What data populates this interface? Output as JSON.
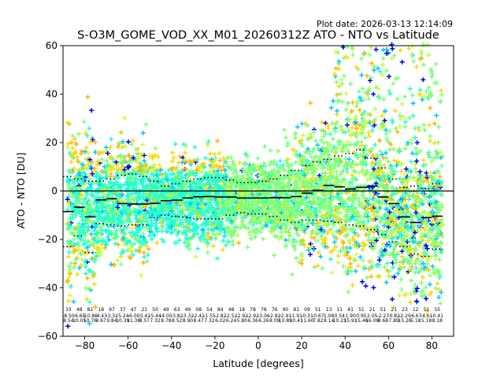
{
  "plot_date": "Plot date: 2026-03-13 12:14:09",
  "chart_data": {
    "type": "scatter",
    "title": "S-O3M_GOME_VOD_XX_M01_20260312Z ATO - NTO vs Latitude",
    "xlabel": "Latitude [degrees]",
    "ylabel": "ATO - NTO [DU]",
    "xlim": [
      -90,
      90
    ],
    "ylim": [
      -60,
      60
    ],
    "x_ticks": [
      -80,
      -60,
      -40,
      -20,
      0,
      20,
      40,
      60,
      80
    ],
    "y_ticks": [
      -60,
      -40,
      -20,
      0,
      20,
      40,
      60
    ],
    "zero_line": 0,
    "colors": [
      "#0000ee",
      "#00c8ff",
      "#22ffd2",
      "#7dff7d",
      "#c8ff3c",
      "#ffd700",
      "#ffb400"
    ],
    "bin_mean": {
      "x": [
        -87.5,
        -82.5,
        -77.5,
        -72.5,
        -67.5,
        -62.5,
        -57.5,
        -52.5,
        -47.5,
        -42.5,
        -37.5,
        -32.5,
        -27.5,
        -22.5,
        -17.5,
        -12.5,
        -7.5,
        -2.5,
        2.5,
        7.5,
        12.5,
        17.5,
        22.5,
        27.5,
        32.5,
        37.5,
        42.5,
        47.5,
        52.5,
        57.5,
        62.5,
        67.5,
        72.5,
        77.5,
        82.5
      ],
      "y": [
        -8.5,
        -6.7,
        -10.7,
        -3.7,
        -3.2,
        -5.2,
        -5.4,
        -5.4,
        -5.1,
        -4.0,
        -3.8,
        -2.9,
        -2.4,
        -2.3,
        -2.5,
        -2.5,
        -2.9,
        -2.9,
        -2.9,
        -2.8,
        -2.8,
        -2.3,
        -0.9,
        0.3,
        2.3,
        1.7,
        0.8,
        1.5,
        2.0,
        -2.5,
        -5.2,
        -10.7,
        -13.0,
        -11.0,
        -10.4
      ]
    },
    "bin_std_upper": [
      6.0,
      5.0,
      4.0,
      4.0,
      5.0,
      6.5,
      7.0,
      6.0,
      4.0,
      2.0,
      3.0,
      4.0,
      5.0,
      5.5,
      5.5,
      4.5,
      3.5,
      3.5,
      4.0,
      5.0,
      6.5,
      8.5,
      10.5,
      12.0,
      13.0,
      14.5,
      15.5,
      17.0,
      13.5,
      9.5,
      5.0,
      1.5,
      2.0,
      1.0,
      3.0
    ],
    "bin_std_lower": [
      -23.0,
      -18.5,
      -25.5,
      -13.5,
      -14.0,
      -14.5,
      -14.0,
      -14.0,
      -11.0,
      -10.0,
      -10.5,
      -11.0,
      -11.5,
      -11.5,
      -11.5,
      -10.0,
      -9.0,
      -9.5,
      -9.5,
      -10.5,
      -12.0,
      -13.0,
      -12.0,
      -12.0,
      -12.5,
      -13.0,
      -14.0,
      -14.5,
      -16.0,
      -18.0,
      -21.0,
      -23.0,
      -26.0,
      -27.0,
      -24.0
    ],
    "stat_rows": [
      [
        "33",
        "48",
        "82",
        "18",
        "97",
        "37",
        "47",
        "21",
        "50",
        "49",
        "63",
        "49",
        "08",
        "54",
        "84",
        "48",
        "18",
        "78",
        "78",
        "76",
        "90",
        "81",
        "09",
        "51",
        "13",
        "11",
        "41",
        "51",
        "21",
        "51",
        "21",
        "23",
        "12",
        "51",
        "55"
      ],
      [
        "-8.50",
        "-6.65",
        "-10.86",
        "-4.43",
        "-3.32",
        "-5.24",
        "-6.00",
        "-5.42",
        "-5.44",
        "-4.00",
        "-3.82",
        "-3.32",
        "-2.42",
        "-1.55",
        "-2.82",
        "-2.52",
        "-2.92",
        "-2.92",
        "-3.06",
        "-2.82",
        "-2.91",
        "-1.91",
        "-0.31",
        "-0.67",
        "1.08",
        "0.54",
        "1.90",
        "0.95",
        "2.05",
        "-2.27",
        "-0.82",
        "-2.20",
        "-6.67",
        "-4.61",
        "-0.41"
      ],
      [
        "8.54",
        "10.05",
        "10.76",
        "9.67",
        "9.84",
        "10.39",
        "11.36",
        "8.57",
        "7.32",
        "8.78",
        "8.52",
        "8.90",
        "8.47",
        "7.32",
        "6.02",
        "6.24",
        "5.80",
        "6.36",
        "6.26",
        "8.09",
        "10.89",
        "10.41",
        "11.60",
        "7.82",
        "8.14",
        "10.25",
        "15.91",
        "15.46",
        "16.08",
        "8.68",
        "7.89",
        "15.26",
        "5.18",
        "5.18",
        "8.18"
      ]
    ]
  }
}
